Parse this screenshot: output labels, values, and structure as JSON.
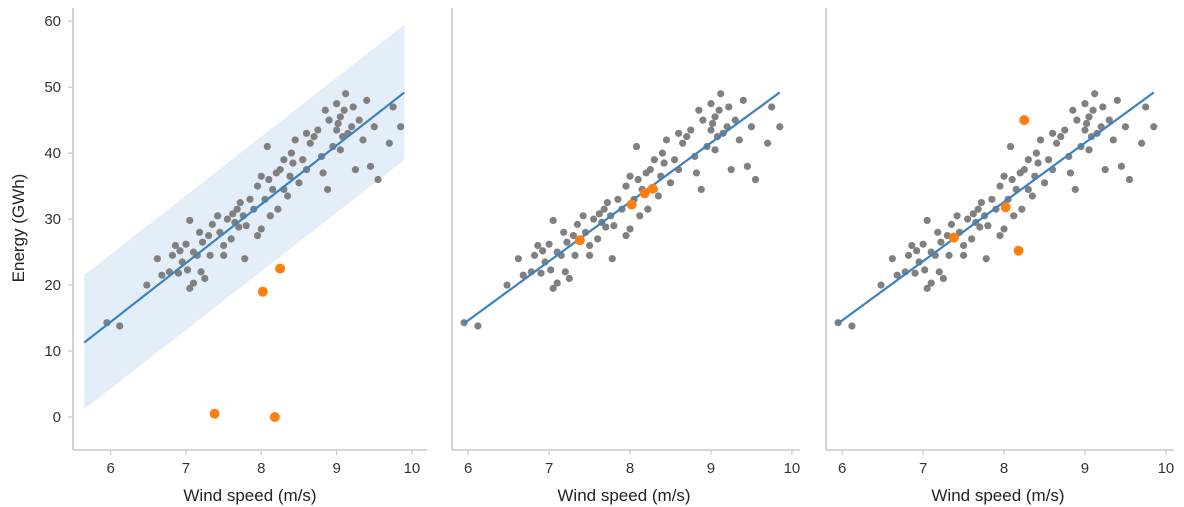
{
  "colors": {
    "points": "#808080",
    "highlight": "#ff7f0e",
    "fit_line": "#3b82c0",
    "band": "#dbe8f5"
  },
  "chart_data": [
    {
      "type": "scatter",
      "xlabel": "Wind speed (m/s)",
      "ylabel": "Energy (GWh)",
      "xlim": [
        5.5,
        10.2
      ],
      "ylim": [
        -5,
        62
      ],
      "x_ticks": [
        6,
        7,
        8,
        9,
        10
      ],
      "y_ticks": [
        0,
        10,
        20,
        30,
        40,
        50,
        60
      ],
      "grid": false,
      "fit_line": [
        [
          5.65,
          11.3
        ],
        [
          9.9,
          49.2
        ]
      ],
      "band": {
        "x": [
          5.65,
          9.9
        ],
        "lower": [
          1.2,
          39.0
        ],
        "upper": [
          21.5,
          59.5
        ]
      },
      "highlighted_points": [
        [
          7.38,
          0.5
        ],
        [
          8.18,
          0.0
        ],
        [
          8.02,
          19.0
        ],
        [
          8.25,
          22.5
        ]
      ]
    },
    {
      "type": "scatter",
      "xlabel": "Wind speed (m/s)",
      "ylabel": "",
      "xlim": [
        5.8,
        10.1
      ],
      "ylim": [
        -5,
        62
      ],
      "x_ticks": [
        6,
        7,
        8,
        9,
        10
      ],
      "y_ticks": [],
      "grid": false,
      "fit_line": [
        [
          5.95,
          14.2
        ],
        [
          9.85,
          49.2
        ]
      ],
      "highlighted_points": [
        [
          7.38,
          26.8
        ],
        [
          8.02,
          32.2
        ],
        [
          8.18,
          33.9
        ],
        [
          8.28,
          34.6
        ]
      ]
    },
    {
      "type": "scatter",
      "xlabel": "Wind speed (m/s)",
      "ylabel": "",
      "xlim": [
        5.8,
        10.1
      ],
      "ylim": [
        -5,
        62
      ],
      "x_ticks": [
        6,
        7,
        8,
        9,
        10
      ],
      "y_ticks": [],
      "grid": false,
      "fit_line": [
        [
          5.95,
          14.2
        ],
        [
          9.85,
          49.2
        ]
      ],
      "highlighted_points": [
        [
          7.38,
          27.2
        ],
        [
          8.02,
          31.8
        ],
        [
          8.18,
          25.2
        ],
        [
          8.25,
          45.0
        ]
      ]
    }
  ],
  "shared_points": [
    [
      5.95,
      14.3
    ],
    [
      6.12,
      13.8
    ],
    [
      6.48,
      20.0
    ],
    [
      6.62,
      24.0
    ],
    [
      6.68,
      21.5
    ],
    [
      6.78,
      22.0
    ],
    [
      6.82,
      24.5
    ],
    [
      6.86,
      26.0
    ],
    [
      6.9,
      21.8
    ],
    [
      6.92,
      25.2
    ],
    [
      6.95,
      23.5
    ],
    [
      7.0,
      26.2
    ],
    [
      7.02,
      22.3
    ],
    [
      7.05,
      19.5
    ],
    [
      7.05,
      29.8
    ],
    [
      7.1,
      25.0
    ],
    [
      7.1,
      20.3
    ],
    [
      7.15,
      24.5
    ],
    [
      7.18,
      28.0
    ],
    [
      7.2,
      22.0
    ],
    [
      7.22,
      26.5
    ],
    [
      7.25,
      21.0
    ],
    [
      7.3,
      27.5
    ],
    [
      7.32,
      24.5
    ],
    [
      7.35,
      29.2
    ],
    [
      7.42,
      30.5
    ],
    [
      7.45,
      28.0
    ],
    [
      7.5,
      26.0
    ],
    [
      7.5,
      24.5
    ],
    [
      7.55,
      30.0
    ],
    [
      7.6,
      27.0
    ],
    [
      7.62,
      30.8
    ],
    [
      7.65,
      29.5
    ],
    [
      7.68,
      31.5
    ],
    [
      7.7,
      28.8
    ],
    [
      7.72,
      32.5
    ],
    [
      7.76,
      30.5
    ],
    [
      7.78,
      24.0
    ],
    [
      7.8,
      29.0
    ],
    [
      7.85,
      33.0
    ],
    [
      7.9,
      31.5
    ],
    [
      7.95,
      27.5
    ],
    [
      7.95,
      35.0
    ],
    [
      8.0,
      36.5
    ],
    [
      8.0,
      28.5
    ],
    [
      8.05,
      33.0
    ],
    [
      8.08,
      41.0
    ],
    [
      8.1,
      36.0
    ],
    [
      8.12,
      30.5
    ],
    [
      8.15,
      34.5
    ],
    [
      8.2,
      37.0
    ],
    [
      8.22,
      31.5
    ],
    [
      8.25,
      37.5
    ],
    [
      8.3,
      39.0
    ],
    [
      8.3,
      34.5
    ],
    [
      8.35,
      33.5
    ],
    [
      8.38,
      36.5
    ],
    [
      8.4,
      40.0
    ],
    [
      8.42,
      38.5
    ],
    [
      8.45,
      42.0
    ],
    [
      8.5,
      35.5
    ],
    [
      8.55,
      39.0
    ],
    [
      8.6,
      37.5
    ],
    [
      8.65,
      41.5
    ],
    [
      8.7,
      42.5
    ],
    [
      8.75,
      43.5
    ],
    [
      8.8,
      39.5
    ],
    [
      8.82,
      37.0
    ],
    [
      8.85,
      46.5
    ],
    [
      8.88,
      34.5
    ],
    [
      8.9,
      45.0
    ],
    [
      8.95,
      41.0
    ],
    [
      9.0,
      43.5
    ],
    [
      9.02,
      44.5
    ],
    [
      9.05,
      45.5
    ],
    [
      9.05,
      40.5
    ],
    [
      9.08,
      42.5
    ],
    [
      9.1,
      46.5
    ],
    [
      9.12,
      49.0
    ],
    [
      9.15,
      43.0
    ],
    [
      9.2,
      44.0
    ],
    [
      9.22,
      47.0
    ],
    [
      9.25,
      37.5
    ],
    [
      9.3,
      45.0
    ],
    [
      9.35,
      42.0
    ],
    [
      9.4,
      48.0
    ],
    [
      9.45,
      38.0
    ],
    [
      9.5,
      44.0
    ],
    [
      9.55,
      36.0
    ],
    [
      9.7,
      41.5
    ],
    [
      9.75,
      47.0
    ],
    [
      9.85,
      44.0
    ],
    [
      9.0,
      47.5
    ],
    [
      8.6,
      43.0
    ]
  ]
}
